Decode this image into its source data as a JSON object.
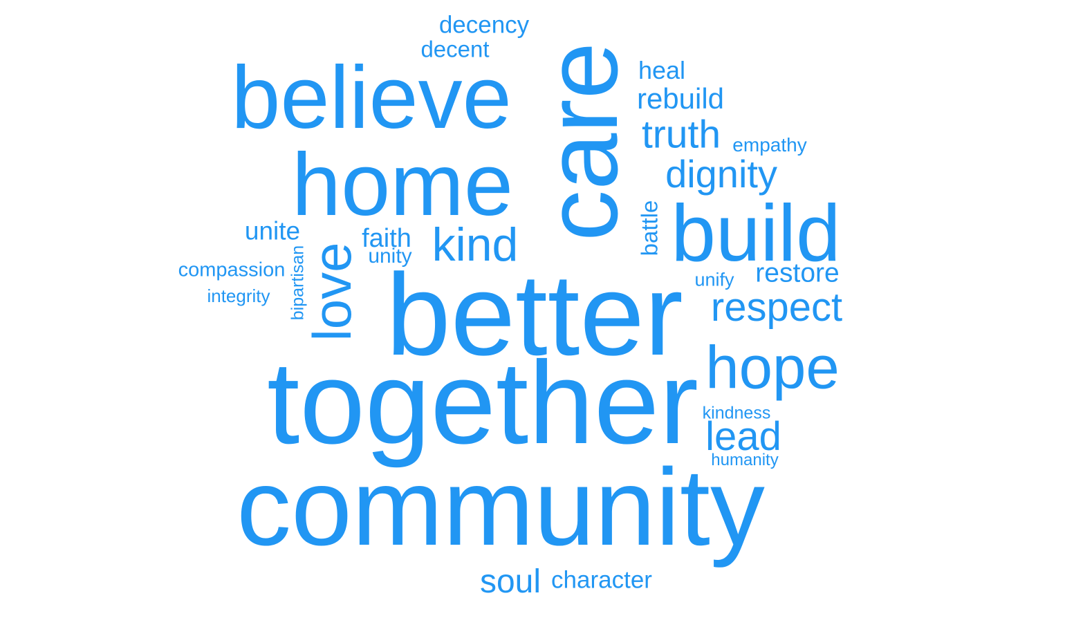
{
  "colors": {
    "word": "#2196f3",
    "background": "#ffffff"
  },
  "words": {
    "decency": "decency",
    "decent": "decent",
    "believe": "believe",
    "care": "care",
    "heal": "heal",
    "rebuild": "rebuild",
    "truth": "truth",
    "empathy": "empathy",
    "home": "home",
    "dignity": "dignity",
    "build": "build",
    "battle": "battle",
    "unite": "unite",
    "faith": "faith",
    "kind": "kind",
    "unity": "unity",
    "love": "love",
    "compassion": "compassion",
    "integrity": "integrity",
    "bipartisan": "bipartisan",
    "better": "better",
    "restore": "restore",
    "unify": "unify",
    "respect": "respect",
    "hope": "hope",
    "together": "together",
    "kindness": "kindness",
    "lead": "lead",
    "humanity": "humanity",
    "community": "community",
    "soul": "soul",
    "character": "character"
  }
}
